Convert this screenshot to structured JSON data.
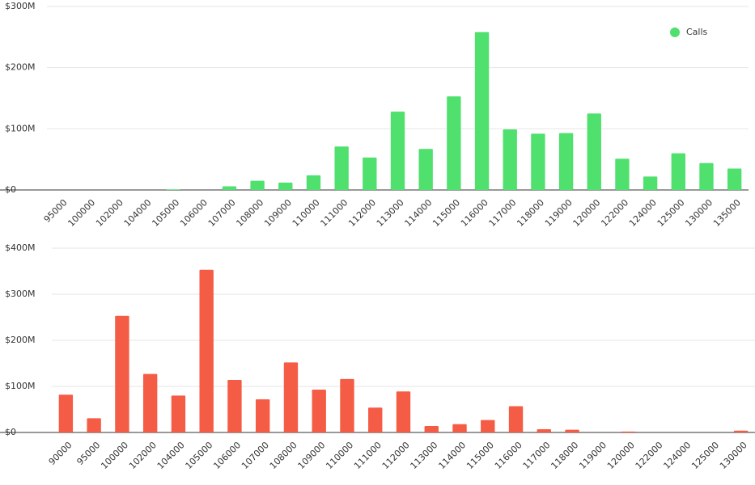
{
  "chart_data": [
    {
      "type": "bar",
      "categories": [
        "95000",
        "100000",
        "102000",
        "104000",
        "105000",
        "106000",
        "107000",
        "108000",
        "109000",
        "110000",
        "111000",
        "112000",
        "113000",
        "114000",
        "115000",
        "116000",
        "117000",
        "118000",
        "119000",
        "120000",
        "122000",
        "124000",
        "125000",
        "130000",
        "135000"
      ],
      "series": [
        {
          "name": "Calls",
          "color": "#4fe06e",
          "values": [
            0,
            0,
            0,
            0,
            1000000,
            0,
            6000000,
            15000000,
            12000000,
            24000000,
            71000000,
            53000000,
            128000000,
            67000000,
            153000000,
            258000000,
            99000000,
            92000000,
            93000000,
            125000000,
            51000000,
            22000000,
            60000000,
            44000000,
            35000000
          ]
        }
      ],
      "ylim": [
        0,
        300000000
      ],
      "yticks": [
        {
          "value": 0,
          "label": "$0"
        },
        {
          "value": 100000000,
          "label": "$100M"
        },
        {
          "value": 200000000,
          "label": "$200M"
        },
        {
          "value": 300000000,
          "label": "$300M"
        }
      ],
      "grid": true,
      "legend": "upper right"
    },
    {
      "type": "bar",
      "categories": [
        "90000",
        "95000",
        "100000",
        "102000",
        "104000",
        "105000",
        "106000",
        "107000",
        "108000",
        "109000",
        "110000",
        "111000",
        "112000",
        "113000",
        "114000",
        "115000",
        "116000",
        "117000",
        "118000",
        "119000",
        "120000",
        "122000",
        "124000",
        "125000",
        "130000"
      ],
      "values": [
        82000000,
        31000000,
        253000000,
        127000000,
        80000000,
        353000000,
        114000000,
        72000000,
        152000000,
        93000000,
        116000000,
        54000000,
        89000000,
        14000000,
        18000000,
        27000000,
        57000000,
        7000000,
        6000000,
        0,
        2000000,
        0,
        0,
        0,
        4000000
      ],
      "color": "#f55c45",
      "ylim": [
        0,
        400000000
      ],
      "yticks": [
        {
          "value": 0,
          "label": "$0"
        },
        {
          "value": 100000000,
          "label": "$100M"
        },
        {
          "value": 200000000,
          "label": "$200M"
        },
        {
          "value": 300000000,
          "label": "$300M"
        },
        {
          "value": 400000000,
          "label": "$400M"
        }
      ],
      "grid": true
    }
  ]
}
